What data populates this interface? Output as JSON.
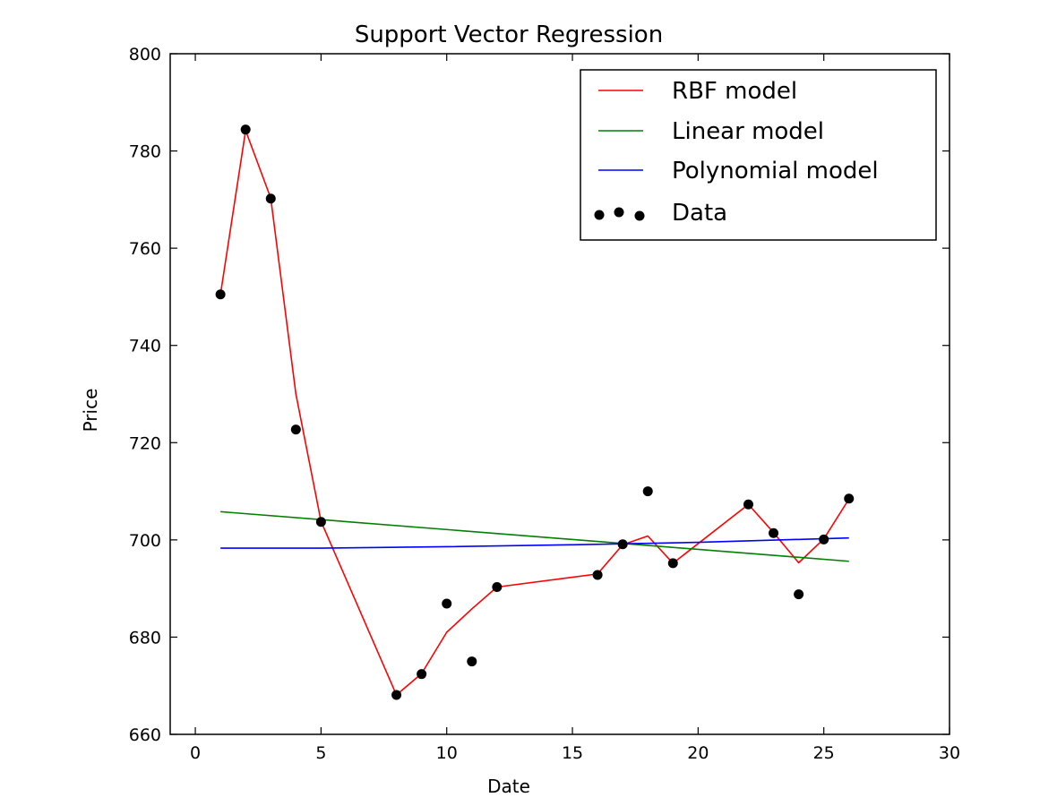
{
  "chart_data": {
    "type": "line",
    "title": "Support Vector Regression",
    "xlabel": "Date",
    "ylabel": "Price",
    "xlim": [
      -1,
      30
    ],
    "ylim": [
      660,
      800
    ],
    "xticks": [
      0,
      5,
      10,
      15,
      20,
      25,
      30
    ],
    "yticks": [
      660,
      680,
      700,
      720,
      740,
      760,
      780,
      800
    ],
    "grid": false,
    "legend_position": "top-right",
    "series": [
      {
        "name": "RBF model",
        "kind": "line",
        "color": "#ff0000",
        "x": [
          1,
          2,
          3,
          4,
          5,
          8,
          9,
          10,
          11,
          12,
          16,
          17,
          18,
          19,
          22,
          23,
          24,
          25,
          26
        ],
        "y": [
          750.5,
          784.2,
          770.3,
          730,
          703.8,
          668.1,
          672.5,
          681,
          685.8,
          690.3,
          693,
          699,
          700.8,
          695.2,
          707.3,
          701.5,
          695.3,
          700.2,
          708.4
        ]
      },
      {
        "name": "Linear model",
        "kind": "line",
        "color": "#008000",
        "x": [
          1,
          26
        ],
        "y": [
          705.8,
          695.6
        ]
      },
      {
        "name": "Polynomial model",
        "kind": "line",
        "color": "#0000ff",
        "x": [
          1,
          5,
          10,
          15,
          20,
          26
        ],
        "y": [
          698.3,
          698.3,
          698.6,
          699,
          699.5,
          700.4
        ]
      },
      {
        "name": "Data",
        "kind": "scatter",
        "color": "#000000",
        "x": [
          1,
          2,
          3,
          4,
          5,
          8,
          9,
          10,
          11,
          12,
          16,
          17,
          18,
          19,
          22,
          23,
          24,
          25,
          26
        ],
        "y": [
          750.5,
          784.4,
          770.2,
          722.7,
          703.7,
          668.1,
          672.4,
          686.9,
          675,
          690.3,
          692.8,
          699.1,
          710,
          695.2,
          707.3,
          701.4,
          688.8,
          700.1,
          708.5
        ]
      }
    ]
  }
}
